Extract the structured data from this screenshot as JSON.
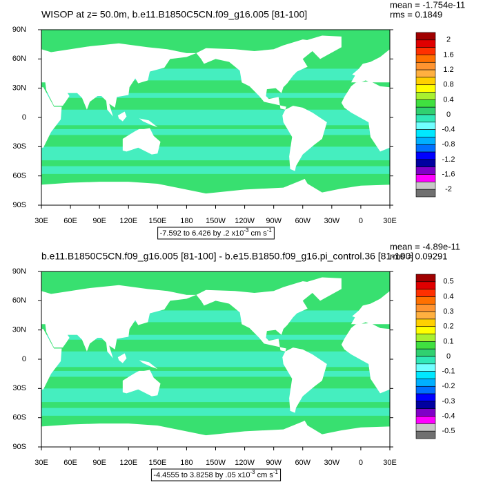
{
  "panels": [
    {
      "title": "WISOP at z=  50.0m, b.e11.B1850C5CN.f09_g16.005 [81-100]",
      "stats": [
        "mean = -1.754e-11",
        "rms = 0.1849"
      ],
      "lat_labels": [
        "90N",
        "60N",
        "30N",
        "0",
        "30S",
        "60S",
        "90S"
      ],
      "lon_labels": [
        "30E",
        "60E",
        "90E",
        "120E",
        "150E",
        "180",
        "150W",
        "120W",
        "90W",
        "60W",
        "30W",
        "0",
        "30E"
      ],
      "levels": [
        2,
        1.6,
        1.2,
        0.8,
        0.4,
        0,
        -0.4,
        -0.8,
        -1.2,
        -1.6,
        -2
      ],
      "info": {
        "text": "-7.592 to 6.426 by .2 x10",
        "exp": "-3",
        "unit": " cm s",
        "unit_exp": "-1"
      }
    },
    {
      "title": "b.e11.B1850C5CN.f09_g16.005 [81-100] - b.e15.B1850.f09_g16.pi_control.36 [81-100]",
      "stats": [
        "mean = -4.89e-11",
        "rms = 0.09291"
      ],
      "lat_labels": [
        "90N",
        "60N",
        "30N",
        "0",
        "30S",
        "60S",
        "90S"
      ],
      "lon_labels": [
        "30E",
        "60E",
        "90E",
        "120E",
        "150E",
        "180",
        "150W",
        "120W",
        "90W",
        "60W",
        "30W",
        "0",
        "30E"
      ],
      "levels": [
        0.5,
        0.4,
        0.3,
        0.2,
        0.1,
        0,
        -0.1,
        -0.2,
        -0.3,
        -0.4,
        -0.5
      ],
      "info": {
        "text": "-4.4555 to 3.8258 by .05 x10",
        "exp": "-3",
        "unit": " cm s",
        "unit_exp": "-1"
      }
    }
  ],
  "colors": [
    "#a00000",
    "#e00000",
    "#ff3000",
    "#ff7000",
    "#ff9430",
    "#ffb040",
    "#ffd000",
    "#ffff00",
    "#a8f030",
    "#40e040",
    "#30d070",
    "#30e8b8",
    "#70ffff",
    "#00e8ff",
    "#00b0ff",
    "#0070ff",
    "#0000ff",
    "#0000a0",
    "#8000c8",
    "#ff00ff",
    "#c8c8c8",
    "#707070"
  ]
}
